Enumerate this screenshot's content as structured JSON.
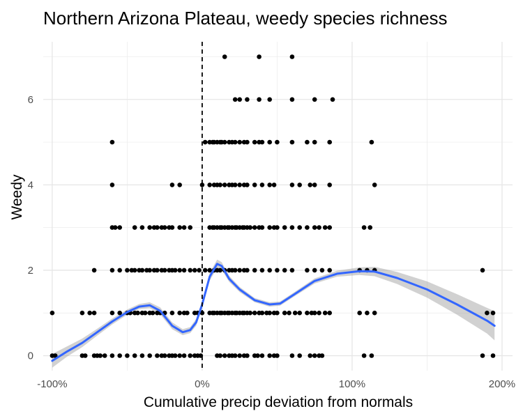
{
  "chart_data": {
    "type": "scatter",
    "title": "Northern Arizona Plateau, weedy species richness",
    "xlabel": "Cumulative precip deviation from normals",
    "ylabel": "Weedy",
    "xlim": [
      -1.06,
      2.07
    ],
    "ylim": [
      -0.35,
      7.35
    ],
    "x_ticks": [
      {
        "value": -1,
        "label": "-100%"
      },
      {
        "value": 0,
        "label": "0%"
      },
      {
        "value": 1,
        "label": "100%"
      },
      {
        "value": 2,
        "label": "200%"
      }
    ],
    "x_minor_ticks": [
      -0.5,
      0.5,
      1.5
    ],
    "y_ticks": [
      {
        "value": 0,
        "label": "0"
      },
      {
        "value": 2,
        "label": "2"
      },
      {
        "value": 4,
        "label": "4"
      },
      {
        "value": 6,
        "label": "6"
      }
    ],
    "y_minor_ticks": [
      1,
      3,
      5,
      7
    ],
    "grid": true,
    "reference_line": {
      "x": 0,
      "style": "dashed",
      "color": "#000000"
    },
    "points": [
      [
        -1.0,
        0
      ],
      [
        -0.98,
        0
      ],
      [
        -0.8,
        0
      ],
      [
        -0.78,
        0
      ],
      [
        -0.72,
        0
      ],
      [
        -0.7,
        0
      ],
      [
        -0.68,
        0
      ],
      [
        -0.65,
        0
      ],
      [
        -0.6,
        0
      ],
      [
        -0.55,
        0
      ],
      [
        -0.5,
        0
      ],
      [
        -0.45,
        0
      ],
      [
        -0.4,
        0
      ],
      [
        -0.35,
        0
      ],
      [
        -0.3,
        0
      ],
      [
        -0.27,
        0
      ],
      [
        -0.25,
        0
      ],
      [
        -0.22,
        0
      ],
      [
        -0.2,
        0
      ],
      [
        -0.18,
        0
      ],
      [
        -0.15,
        0
      ],
      [
        -0.12,
        0
      ],
      [
        -0.08,
        0
      ],
      [
        -0.05,
        0
      ],
      [
        -0.03,
        0
      ],
      [
        -0.01,
        0
      ],
      [
        0.1,
        0
      ],
      [
        0.12,
        0
      ],
      [
        0.15,
        0
      ],
      [
        0.18,
        0
      ],
      [
        0.2,
        0
      ],
      [
        0.22,
        0
      ],
      [
        0.25,
        0
      ],
      [
        0.28,
        0
      ],
      [
        0.3,
        0
      ],
      [
        0.35,
        0
      ],
      [
        0.37,
        0
      ],
      [
        0.4,
        0
      ],
      [
        0.45,
        0
      ],
      [
        0.48,
        0
      ],
      [
        0.5,
        0
      ],
      [
        0.6,
        0
      ],
      [
        0.65,
        0
      ],
      [
        0.72,
        0
      ],
      [
        0.75,
        0
      ],
      [
        0.78,
        0
      ],
      [
        0.8,
        0
      ],
      [
        1.08,
        0
      ],
      [
        1.13,
        0
      ],
      [
        1.87,
        0
      ],
      [
        1.94,
        0
      ],
      [
        -1.0,
        1
      ],
      [
        -0.8,
        1
      ],
      [
        -0.75,
        1
      ],
      [
        -0.72,
        1
      ],
      [
        -0.6,
        1
      ],
      [
        -0.55,
        1
      ],
      [
        -0.5,
        1
      ],
      [
        -0.48,
        1
      ],
      [
        -0.45,
        1
      ],
      [
        -0.43,
        1
      ],
      [
        -0.4,
        1
      ],
      [
        -0.38,
        1
      ],
      [
        -0.35,
        1
      ],
      [
        -0.33,
        1
      ],
      [
        -0.3,
        1
      ],
      [
        -0.28,
        1
      ],
      [
        -0.25,
        1
      ],
      [
        -0.2,
        1
      ],
      [
        -0.15,
        1
      ],
      [
        -0.12,
        1
      ],
      [
        -0.1,
        1
      ],
      [
        -0.05,
        1
      ],
      [
        -0.03,
        1
      ],
      [
        0.0,
        1
      ],
      [
        0.05,
        1
      ],
      [
        0.07,
        1
      ],
      [
        0.08,
        1
      ],
      [
        0.1,
        1
      ],
      [
        0.12,
        1
      ],
      [
        0.13,
        1
      ],
      [
        0.15,
        1
      ],
      [
        0.17,
        1
      ],
      [
        0.18,
        1
      ],
      [
        0.2,
        1
      ],
      [
        0.22,
        1
      ],
      [
        0.23,
        1
      ],
      [
        0.25,
        1
      ],
      [
        0.27,
        1
      ],
      [
        0.28,
        1
      ],
      [
        0.3,
        1
      ],
      [
        0.32,
        1
      ],
      [
        0.35,
        1
      ],
      [
        0.38,
        1
      ],
      [
        0.4,
        1
      ],
      [
        0.43,
        1
      ],
      [
        0.45,
        1
      ],
      [
        0.48,
        1
      ],
      [
        0.5,
        1
      ],
      [
        0.55,
        1
      ],
      [
        0.58,
        1
      ],
      [
        0.62,
        1
      ],
      [
        0.65,
        1
      ],
      [
        0.7,
        1
      ],
      [
        0.73,
        1
      ],
      [
        0.75,
        1
      ],
      [
        0.78,
        1
      ],
      [
        0.82,
        1
      ],
      [
        0.85,
        1
      ],
      [
        1.05,
        1
      ],
      [
        1.1,
        1
      ],
      [
        1.15,
        1
      ],
      [
        1.9,
        1
      ],
      [
        1.94,
        1
      ],
      [
        -0.72,
        2
      ],
      [
        -0.6,
        2
      ],
      [
        -0.55,
        2
      ],
      [
        -0.5,
        2
      ],
      [
        -0.47,
        2
      ],
      [
        -0.45,
        2
      ],
      [
        -0.42,
        2
      ],
      [
        -0.4,
        2
      ],
      [
        -0.37,
        2
      ],
      [
        -0.35,
        2
      ],
      [
        -0.32,
        2
      ],
      [
        -0.3,
        2
      ],
      [
        -0.27,
        2
      ],
      [
        -0.25,
        2
      ],
      [
        -0.22,
        2
      ],
      [
        -0.2,
        2
      ],
      [
        -0.18,
        2
      ],
      [
        -0.15,
        2
      ],
      [
        -0.12,
        2
      ],
      [
        -0.08,
        2
      ],
      [
        -0.05,
        2
      ],
      [
        -0.02,
        2
      ],
      [
        0.02,
        2
      ],
      [
        0.05,
        2
      ],
      [
        0.08,
        2
      ],
      [
        0.1,
        2
      ],
      [
        0.12,
        2
      ],
      [
        0.15,
        2
      ],
      [
        0.18,
        2
      ],
      [
        0.2,
        2
      ],
      [
        0.22,
        2
      ],
      [
        0.25,
        2
      ],
      [
        0.28,
        2
      ],
      [
        0.3,
        2
      ],
      [
        0.35,
        2
      ],
      [
        0.4,
        2
      ],
      [
        0.45,
        2
      ],
      [
        0.5,
        2
      ],
      [
        0.55,
        2
      ],
      [
        0.6,
        2
      ],
      [
        0.7,
        2
      ],
      [
        0.75,
        2
      ],
      [
        0.8,
        2
      ],
      [
        0.85,
        2
      ],
      [
        1.05,
        2
      ],
      [
        1.1,
        2
      ],
      [
        1.15,
        2
      ],
      [
        1.87,
        2
      ],
      [
        -0.6,
        3
      ],
      [
        -0.58,
        3
      ],
      [
        -0.55,
        3
      ],
      [
        -0.45,
        3
      ],
      [
        -0.4,
        3
      ],
      [
        -0.35,
        3
      ],
      [
        -0.32,
        3
      ],
      [
        -0.3,
        3
      ],
      [
        -0.27,
        3
      ],
      [
        -0.25,
        3
      ],
      [
        -0.22,
        3
      ],
      [
        -0.2,
        3
      ],
      [
        -0.15,
        3
      ],
      [
        -0.12,
        3
      ],
      [
        -0.08,
        3
      ],
      [
        0.05,
        3
      ],
      [
        0.07,
        3
      ],
      [
        0.08,
        3
      ],
      [
        0.1,
        3
      ],
      [
        0.12,
        3
      ],
      [
        0.13,
        3
      ],
      [
        0.15,
        3
      ],
      [
        0.17,
        3
      ],
      [
        0.18,
        3
      ],
      [
        0.2,
        3
      ],
      [
        0.22,
        3
      ],
      [
        0.23,
        3
      ],
      [
        0.25,
        3
      ],
      [
        0.27,
        3
      ],
      [
        0.28,
        3
      ],
      [
        0.3,
        3
      ],
      [
        0.32,
        3
      ],
      [
        0.35,
        3
      ],
      [
        0.38,
        3
      ],
      [
        0.4,
        3
      ],
      [
        0.45,
        3
      ],
      [
        0.48,
        3
      ],
      [
        0.5,
        3
      ],
      [
        0.55,
        3
      ],
      [
        0.6,
        3
      ],
      [
        0.65,
        3
      ],
      [
        0.7,
        3
      ],
      [
        0.75,
        3
      ],
      [
        0.78,
        3
      ],
      [
        0.82,
        3
      ],
      [
        0.85,
        3
      ],
      [
        1.08,
        3
      ],
      [
        1.12,
        3
      ],
      [
        -0.6,
        4
      ],
      [
        -0.2,
        4
      ],
      [
        -0.15,
        4
      ],
      [
        0.0,
        4
      ],
      [
        0.05,
        4
      ],
      [
        0.08,
        4
      ],
      [
        0.1,
        4
      ],
      [
        0.12,
        4
      ],
      [
        0.15,
        4
      ],
      [
        0.18,
        4
      ],
      [
        0.2,
        4
      ],
      [
        0.22,
        4
      ],
      [
        0.25,
        4
      ],
      [
        0.28,
        4
      ],
      [
        0.3,
        4
      ],
      [
        0.35,
        4
      ],
      [
        0.4,
        4
      ],
      [
        0.45,
        4
      ],
      [
        0.48,
        4
      ],
      [
        0.6,
        4
      ],
      [
        0.65,
        4
      ],
      [
        0.72,
        4
      ],
      [
        0.75,
        4
      ],
      [
        0.85,
        4
      ],
      [
        1.15,
        4
      ],
      [
        -0.6,
        5
      ],
      [
        0.02,
        5
      ],
      [
        0.05,
        5
      ],
      [
        0.07,
        5
      ],
      [
        0.08,
        5
      ],
      [
        0.1,
        5
      ],
      [
        0.12,
        5
      ],
      [
        0.13,
        5
      ],
      [
        0.15,
        5
      ],
      [
        0.18,
        5
      ],
      [
        0.2,
        5
      ],
      [
        0.22,
        5
      ],
      [
        0.25,
        5
      ],
      [
        0.28,
        5
      ],
      [
        0.3,
        5
      ],
      [
        0.35,
        5
      ],
      [
        0.38,
        5
      ],
      [
        0.4,
        5
      ],
      [
        0.45,
        5
      ],
      [
        0.5,
        5
      ],
      [
        0.6,
        5
      ],
      [
        0.7,
        5
      ],
      [
        0.75,
        5
      ],
      [
        0.85,
        5
      ],
      [
        1.13,
        5
      ],
      [
        0.22,
        6
      ],
      [
        0.25,
        6
      ],
      [
        0.3,
        6
      ],
      [
        0.38,
        6
      ],
      [
        0.45,
        6
      ],
      [
        0.6,
        6
      ],
      [
        0.75,
        6
      ],
      [
        0.87,
        6
      ],
      [
        0.15,
        7
      ],
      [
        0.38,
        7
      ],
      [
        0.6,
        7
      ]
    ],
    "point_color": "#000000",
    "smooth_series": {
      "color": "#3366FF",
      "ci_color": "#999999",
      "x": [
        -1.0,
        -0.9,
        -0.8,
        -0.7,
        -0.6,
        -0.5,
        -0.42,
        -0.35,
        -0.28,
        -0.2,
        -0.13,
        -0.08,
        -0.04,
        0.0,
        0.05,
        0.1,
        0.13,
        0.18,
        0.25,
        0.35,
        0.45,
        0.52,
        0.62,
        0.75,
        0.9,
        1.05,
        1.15,
        1.3,
        1.5,
        1.7,
        1.9,
        1.95
      ],
      "y": [
        -0.12,
        0.1,
        0.3,
        0.55,
        0.8,
        1.02,
        1.15,
        1.18,
        1.05,
        0.7,
        0.55,
        0.6,
        0.78,
        1.2,
        1.85,
        2.15,
        2.1,
        1.8,
        1.55,
        1.3,
        1.2,
        1.22,
        1.45,
        1.75,
        1.92,
        1.98,
        1.97,
        1.82,
        1.55,
        1.2,
        0.82,
        0.7
      ],
      "ci_low": [
        -0.28,
        -0.02,
        0.2,
        0.47,
        0.73,
        0.96,
        1.09,
        1.11,
        0.97,
        0.62,
        0.48,
        0.53,
        0.7,
        1.12,
        1.76,
        2.05,
        2.01,
        1.73,
        1.49,
        1.25,
        1.15,
        1.17,
        1.4,
        1.69,
        1.85,
        1.89,
        1.86,
        1.68,
        1.36,
        0.96,
        0.52,
        0.36
      ],
      "ci_high": [
        0.04,
        0.22,
        0.4,
        0.63,
        0.87,
        1.08,
        1.21,
        1.25,
        1.13,
        0.78,
        0.62,
        0.67,
        0.86,
        1.28,
        1.94,
        2.25,
        2.19,
        1.87,
        1.61,
        1.35,
        1.25,
        1.27,
        1.5,
        1.81,
        1.99,
        2.07,
        2.08,
        1.96,
        1.74,
        1.44,
        1.12,
        1.04
      ]
    }
  }
}
